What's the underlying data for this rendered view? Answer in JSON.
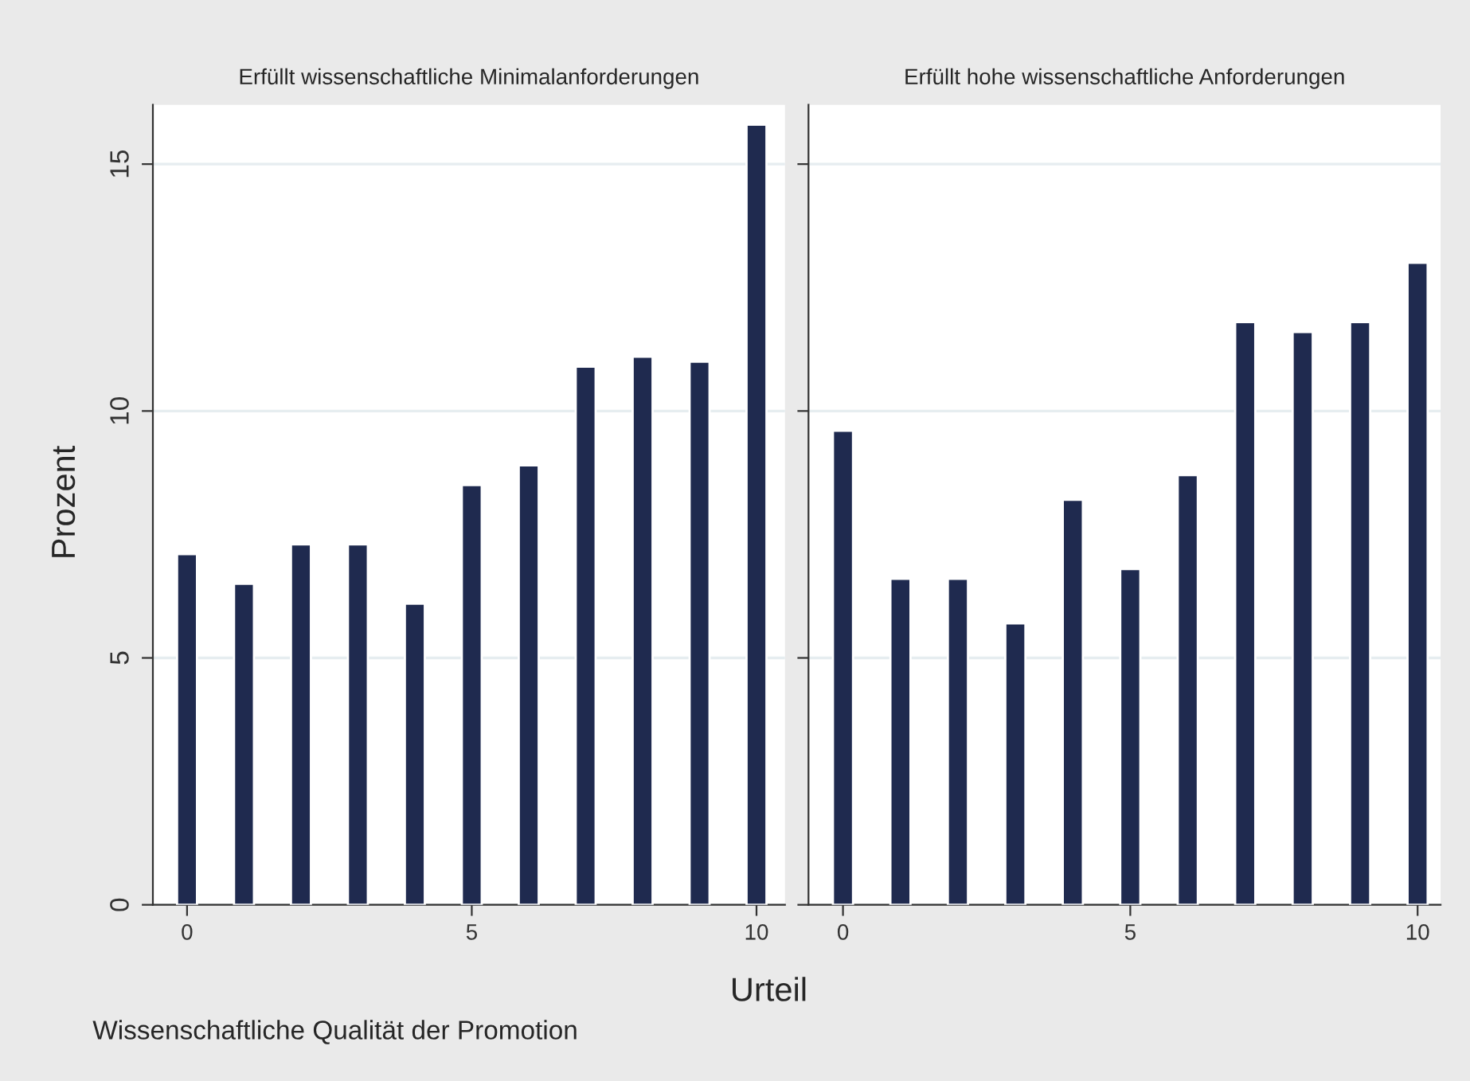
{
  "chart_data": [
    {
      "type": "bar",
      "title": "Erfüllt wissenschaftliche Minimalanforderungen",
      "ylabel": "Prozent",
      "xlabel": "Urteil",
      "annotations": [
        "Wissenschaftliche Qualität der Promotion"
      ],
      "x": [
        0,
        1,
        2,
        3,
        4,
        5,
        6,
        7,
        8,
        9,
        10
      ],
      "values": [
        7.1,
        6.5,
        7.3,
        7.3,
        6.1,
        8.5,
        8.9,
        10.9,
        11.1,
        11.0,
        15.8
      ],
      "color": "#1f2a4f",
      "xlim": [
        -0.6,
        10.5
      ],
      "xticks": [
        0,
        5,
        10
      ],
      "ylim": [
        0,
        16.2
      ],
      "yticks": [
        0,
        5,
        10,
        15
      ],
      "grid": "y",
      "legend": false
    },
    {
      "type": "bar",
      "title": "Erfüllt hohe wissenschaftliche Anforderungen",
      "x": [
        0,
        1,
        2,
        3,
        4,
        5,
        6,
        7,
        8,
        9,
        10
      ],
      "values": [
        9.6,
        6.6,
        6.6,
        5.7,
        8.2,
        6.8,
        8.7,
        11.8,
        11.6,
        11.8,
        13.0
      ],
      "color": "#1f2a4f",
      "xlim": [
        -0.6,
        10.4
      ],
      "xticks": [
        0,
        5,
        10
      ],
      "ylim": [
        0,
        16.2
      ],
      "yticks": [
        0,
        5,
        10,
        15
      ],
      "grid": "y",
      "legend": false,
      "tick_labels": "x"
    }
  ]
}
